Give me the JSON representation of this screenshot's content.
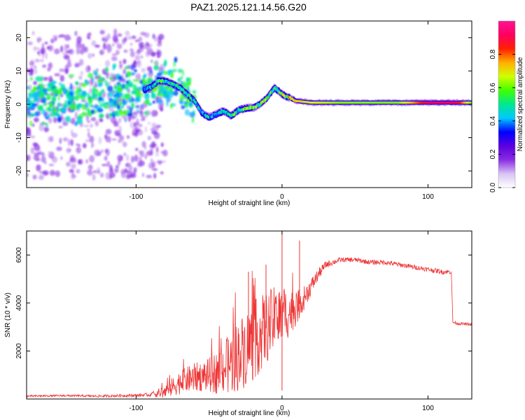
{
  "figure": {
    "title": "PAZ1.2025.121.14.56.G20"
  },
  "chart_data": [
    {
      "type": "heatmap",
      "xlabel": "Height of straight line (km)",
      "ylabel": "Frequency (Hz)",
      "xlim": [
        -175,
        130
      ],
      "ylim": [
        -25,
        25
      ],
      "xticks": [
        -100,
        0,
        100
      ],
      "yticks": [
        -20,
        -10,
        0,
        10,
        20
      ],
      "grid": false,
      "colorbar": {
        "label": "Normalized spectral amplitude",
        "range": [
          0.0,
          1.0
        ],
        "ticks": [
          "0.0",
          "0.2",
          "0.4",
          "0.6",
          "0.8"
        ],
        "colormap": [
          "#ffffff",
          "#d8c4f4",
          "#8a2be2",
          "#5a00e0",
          "#0000ff",
          "#00c8ff",
          "#00e890",
          "#40ff00",
          "#d0ff00",
          "#ffb000",
          "#ff2000",
          "#ff0060",
          "#ff1493"
        ]
      },
      "ridge": {
        "x": [
          -175,
          -150,
          -120,
          -100,
          -90,
          -85,
          -80,
          -75,
          -70,
          -65,
          -60,
          -55,
          -50,
          -45,
          -40,
          -35,
          -30,
          -25,
          -20,
          -15,
          -10,
          -5,
          0,
          5,
          10,
          20,
          40,
          60,
          80,
          100,
          120,
          130
        ],
        "freq": [
          1.0,
          1.5,
          2.0,
          3.5,
          5.0,
          7.0,
          7.0,
          6.0,
          5.0,
          3.0,
          1.0,
          -2.5,
          -4.0,
          -3.0,
          -2.0,
          -3.5,
          -1.8,
          -1.2,
          -1.0,
          0.0,
          2.0,
          5.0,
          3.0,
          2.0,
          1.0,
          0.5,
          0.5,
          0.5,
          0.5,
          0.5,
          0.5,
          0.5
        ],
        "amplitude": [
          0.28,
          0.3,
          0.3,
          0.32,
          0.4,
          0.5,
          0.5,
          0.45,
          0.45,
          0.5,
          0.45,
          0.4,
          0.45,
          0.4,
          0.45,
          0.5,
          0.5,
          0.55,
          0.55,
          0.55,
          0.55,
          0.5,
          0.6,
          0.7,
          0.72,
          0.68,
          0.62,
          0.62,
          0.62,
          0.9,
          0.9,
          0.6
        ]
      },
      "scatter_region": {
        "x": [
          -175,
          -80
        ],
        "freq_spread": 22
      }
    },
    {
      "type": "line",
      "xlabel": "Height of straight line (km)",
      "ylabel": "SNR (10 * v/v)",
      "xlim": [
        -175,
        130
      ],
      "ylim": [
        0,
        7000
      ],
      "xticks": [
        -100,
        0,
        100
      ],
      "yticks": [
        2000,
        4000,
        6000
      ],
      "grid": false,
      "color": "#ee3333",
      "series": [
        {
          "x": [
            -175,
            -150,
            -125,
            -100,
            -90,
            -80,
            -70,
            -60,
            -50,
            -45,
            -40,
            -35,
            -30,
            -25,
            -20,
            -15,
            -10,
            -5,
            0,
            5,
            10,
            15,
            20,
            25,
            30,
            40,
            50,
            60,
            70,
            80,
            90,
            100,
            110,
            116,
            117,
            120,
            130
          ],
          "y": [
            120,
            140,
            120,
            150,
            180,
            300,
            700,
            900,
            1000,
            1100,
            1300,
            1500,
            1800,
            2100,
            2400,
            2700,
            3000,
            3300,
            3500,
            3600,
            3800,
            4200,
            4700,
            5200,
            5600,
            5800,
            5800,
            5700,
            5700,
            5600,
            5500,
            5400,
            5300,
            5300,
            3200,
            3150,
            3100
          ],
          "noise": [
            40,
            40,
            50,
            60,
            80,
            300,
            500,
            600,
            700,
            900,
            1100,
            1300,
            1500,
            1600,
            1700,
            1600,
            1500,
            1400,
            1300,
            1000,
            700,
            500,
            350,
            250,
            150,
            100,
            100,
            100,
            100,
            100,
            100,
            100,
            100,
            100,
            60,
            60,
            60
          ]
        }
      ],
      "annotations": [
        {
          "x": -23,
          "y": 5300
        },
        {
          "x": -11,
          "y": 5600
        },
        {
          "x": 0,
          "y": 7000
        },
        {
          "x": 0,
          "y": 350
        },
        {
          "x": 12,
          "y": 6600
        }
      ]
    }
  ]
}
